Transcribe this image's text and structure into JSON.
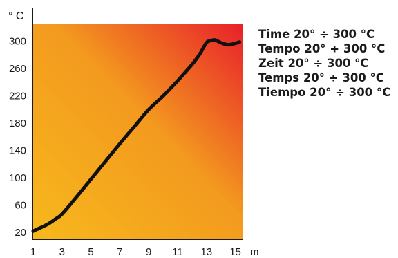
{
  "chart_data": {
    "type": "line",
    "ylabel": "° C",
    "xlabel_unit": "m",
    "x_ticks": [
      "1",
      "3",
      "5",
      "7",
      "9",
      "11",
      "13",
      "15"
    ],
    "y_ticks": [
      "20",
      "60",
      "100",
      "140",
      "180",
      "220",
      "260",
      "300"
    ],
    "xlim": [
      1,
      15.5
    ],
    "ylim": [
      10,
      325
    ],
    "grid": false,
    "background_gradient": {
      "from": "#f7b81c",
      "via": "#f39a1f",
      "to": "#e8202a"
    },
    "series": [
      {
        "color": "#111111",
        "x": [
          1,
          2,
          2.5,
          3,
          4,
          5,
          6,
          7,
          8,
          9,
          10,
          11,
          12,
          12.5,
          13,
          13.3,
          13.6,
          14,
          14.5,
          15,
          15.3
        ],
        "y": [
          22,
          32,
          39,
          47,
          72,
          98,
          124,
          150,
          175,
          200,
          220,
          242,
          266,
          280,
          298,
          301,
          302,
          298,
          295,
          297,
          299
        ]
      }
    ]
  },
  "notes": [
    "Time 20° ÷ 300 °C",
    "Tempo 20° ÷ 300 °C",
    "Zeit 20° ÷ 300 °C",
    "Temps 20° ÷ 300 °C",
    "Tiempo 20° ÷ 300 °C"
  ]
}
